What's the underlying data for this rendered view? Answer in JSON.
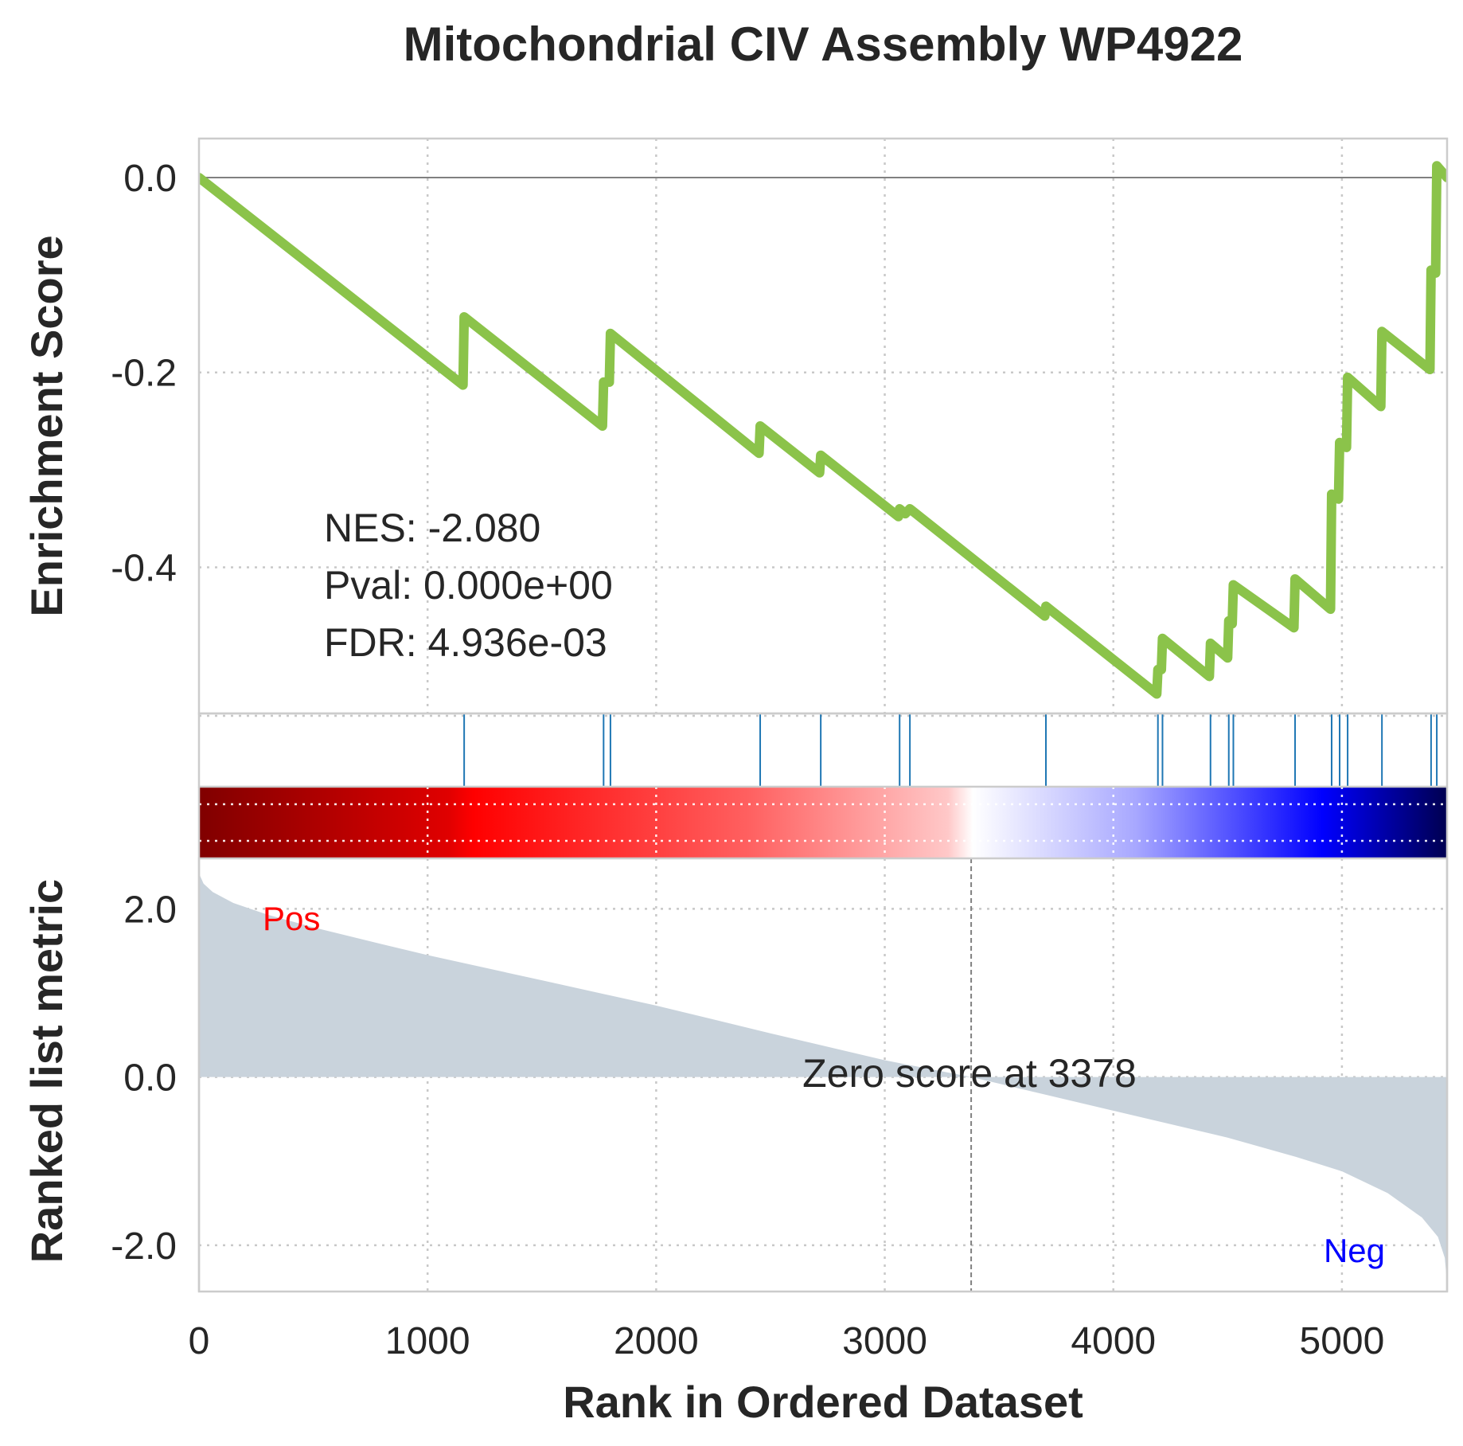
{
  "chart_data": {
    "type": "line",
    "title": "Mitochondrial CIV Assembly WP4922",
    "xlabel": "Rank in Ordered Dataset",
    "xlim": [
      0,
      5460
    ],
    "x_ticks": [
      "0",
      "1000",
      "2000",
      "3000",
      "4000",
      "5000"
    ],
    "x_tick_values": [
      0,
      1000,
      2000,
      3000,
      4000,
      5000
    ],
    "enrichment": {
      "ylabel": "Enrichment Score",
      "ylim": [
        -0.55,
        0.04
      ],
      "y_ticks": [
        "0.0",
        "-0.2",
        "-0.4"
      ],
      "y_tick_values": [
        0.0,
        -0.2,
        -0.4
      ],
      "line_color": "#8bc34a",
      "running_es": [
        {
          "x": 0,
          "y": 0.0
        },
        {
          "x": 1155,
          "y": -0.213
        },
        {
          "x": 1160,
          "y": -0.143
        },
        {
          "x": 1765,
          "y": -0.255
        },
        {
          "x": 1770,
          "y": -0.21
        },
        {
          "x": 1795,
          "y": -0.21
        },
        {
          "x": 1800,
          "y": -0.16
        },
        {
          "x": 2450,
          "y": -0.283
        },
        {
          "x": 2455,
          "y": -0.255
        },
        {
          "x": 2715,
          "y": -0.303
        },
        {
          "x": 2720,
          "y": -0.285
        },
        {
          "x": 3060,
          "y": -0.348
        },
        {
          "x": 3065,
          "y": -0.34
        },
        {
          "x": 3090,
          "y": -0.345
        },
        {
          "x": 3110,
          "y": -0.34
        },
        {
          "x": 3700,
          "y": -0.45
        },
        {
          "x": 3705,
          "y": -0.44
        },
        {
          "x": 4190,
          "y": -0.53
        },
        {
          "x": 4195,
          "y": -0.505
        },
        {
          "x": 4210,
          "y": -0.505
        },
        {
          "x": 4215,
          "y": -0.473
        },
        {
          "x": 4420,
          "y": -0.512
        },
        {
          "x": 4425,
          "y": -0.478
        },
        {
          "x": 4500,
          "y": -0.493
        },
        {
          "x": 4505,
          "y": -0.455
        },
        {
          "x": 4520,
          "y": -0.458
        },
        {
          "x": 4525,
          "y": -0.418
        },
        {
          "x": 4790,
          "y": -0.462
        },
        {
          "x": 4795,
          "y": -0.412
        },
        {
          "x": 4950,
          "y": -0.443
        },
        {
          "x": 4955,
          "y": -0.325
        },
        {
          "x": 4985,
          "y": -0.33
        },
        {
          "x": 4990,
          "y": -0.272
        },
        {
          "x": 5020,
          "y": -0.277
        },
        {
          "x": 5025,
          "y": -0.205
        },
        {
          "x": 5170,
          "y": -0.235
        },
        {
          "x": 5175,
          "y": -0.158
        },
        {
          "x": 5385,
          "y": -0.197
        },
        {
          "x": 5390,
          "y": -0.095
        },
        {
          "x": 5410,
          "y": -0.098
        },
        {
          "x": 5415,
          "y": 0.012
        },
        {
          "x": 5460,
          "y": 0.0
        }
      ],
      "annotations": {
        "nes": "NES: -2.080",
        "pval": "Pval: 0.000e+00",
        "fdr": "FDR: 4.936e-03"
      }
    },
    "hits": {
      "color": "#1f77b4",
      "positions": [
        1160,
        1770,
        1800,
        2455,
        2720,
        3065,
        3110,
        3705,
        4195,
        4215,
        4425,
        4505,
        4525,
        4795,
        4955,
        4990,
        5025,
        5175,
        5390,
        5415
      ]
    },
    "heatbar": {
      "gradient_stops": [
        {
          "offset": 0.0,
          "color": "#800000"
        },
        {
          "offset": 0.2,
          "color": "#e00000"
        },
        {
          "offset": 0.22,
          "color": "#ff0000"
        },
        {
          "offset": 0.44,
          "color": "#ff6060"
        },
        {
          "offset": 0.6,
          "color": "#ffc8c8"
        },
        {
          "offset": 0.62,
          "color": "#ffffff"
        },
        {
          "offset": 0.75,
          "color": "#a8a8ff"
        },
        {
          "offset": 0.9,
          "color": "#0000ff"
        },
        {
          "offset": 1.0,
          "color": "#000050"
        }
      ]
    },
    "ranked_metric": {
      "ylabel": "Ranked list metric",
      "ylim": [
        -2.55,
        2.6
      ],
      "y_ticks": [
        "2.0",
        "0.0",
        "-2.0"
      ],
      "y_tick_values": [
        2.0,
        0.0,
        -2.0
      ],
      "fill_color": "#c9d3dc",
      "curve": [
        {
          "x": 0,
          "y": 2.42
        },
        {
          "x": 20,
          "y": 2.3
        },
        {
          "x": 60,
          "y": 2.2
        },
        {
          "x": 150,
          "y": 2.07
        },
        {
          "x": 300,
          "y": 1.93
        },
        {
          "x": 500,
          "y": 1.78
        },
        {
          "x": 800,
          "y": 1.58
        },
        {
          "x": 1000,
          "y": 1.45
        },
        {
          "x": 1500,
          "y": 1.15
        },
        {
          "x": 2000,
          "y": 0.85
        },
        {
          "x": 2500,
          "y": 0.52
        },
        {
          "x": 3000,
          "y": 0.2
        },
        {
          "x": 3378,
          "y": 0.0
        },
        {
          "x": 4000,
          "y": -0.4
        },
        {
          "x": 4500,
          "y": -0.72
        },
        {
          "x": 4800,
          "y": -0.95
        },
        {
          "x": 5000,
          "y": -1.12
        },
        {
          "x": 5200,
          "y": -1.38
        },
        {
          "x": 5350,
          "y": -1.67
        },
        {
          "x": 5420,
          "y": -1.9
        },
        {
          "x": 5450,
          "y": -2.15
        },
        {
          "x": 5460,
          "y": -2.45
        }
      ],
      "zero_cross_x": 3378,
      "zero_label": "Zero score at 3378",
      "pos_label": "Pos",
      "neg_label": "Neg",
      "pos_color": "#ff0000",
      "neg_color": "#0000ff"
    }
  }
}
